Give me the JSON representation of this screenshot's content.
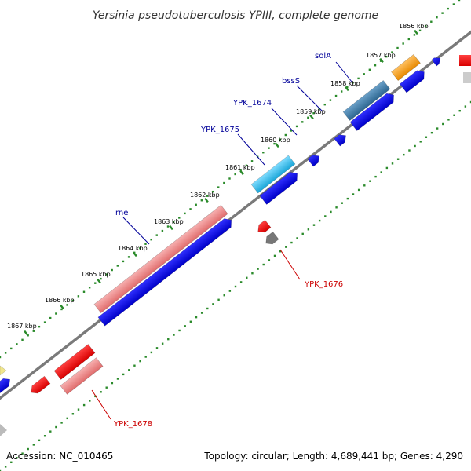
{
  "title": "Yersinia pseudotuberculosis YPIII, complete genome",
  "accession": "Accession: NC_010465",
  "summary": "Topology: circular; Length: 4,689,441 bp; Genes: 4,290",
  "ticks": [
    "1856 kbp",
    "1857 kbp",
    "1858 kbp",
    "1859 kbp",
    "1860 kbp",
    "1861 kbp",
    "1862 kbp",
    "1863 kbp",
    "1864 kbp",
    "1865 kbp",
    "1866 kbp",
    "1867 kbp"
  ],
  "labels": {
    "solA": "solA",
    "bssS": "bssS",
    "ypk1674": "YPK_1674",
    "ypk1675": "YPK_1675",
    "rne": "rne",
    "ypk1676": "YPK_1676",
    "ypk1678": "YPK_1678"
  },
  "colors": {
    "backbone": "#7a7a7a",
    "tick_dots": "#2a8a2a",
    "blue": "#0000ee",
    "red": "#ee0000",
    "pink": "#ef8080",
    "cyan": "#22b8e6",
    "steel": "#3c78a8",
    "orange": "#f39c12",
    "gray": "#777777",
    "label_blue": "#000099",
    "label_red": "#cc0000"
  }
}
